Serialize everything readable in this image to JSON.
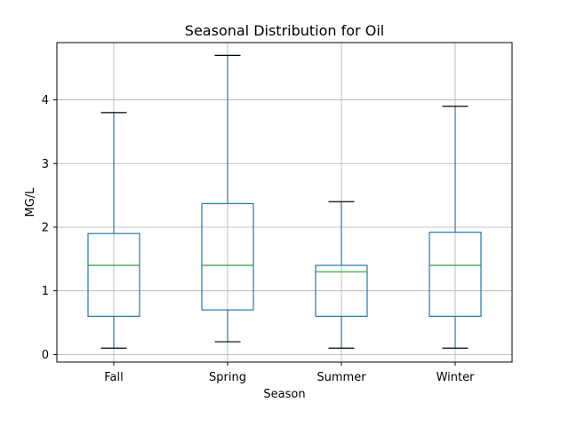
{
  "chart_data": {
    "type": "boxplot",
    "title": "Seasonal Distribution for Oil",
    "xlabel": "Season",
    "ylabel": "MG/L",
    "categories": [
      "Fall",
      "Spring",
      "Summer",
      "Winter"
    ],
    "ylim": [
      -0.12,
      4.9
    ],
    "yticks": [
      0,
      1,
      2,
      3,
      4
    ],
    "grid": true,
    "boxes": [
      {
        "category": "Fall",
        "whisker_low": 0.1,
        "q1": 0.6,
        "median": 1.4,
        "q3": 1.9,
        "whisker_high": 3.8
      },
      {
        "category": "Spring",
        "whisker_low": 0.2,
        "q1": 0.7,
        "median": 1.4,
        "q3": 2.37,
        "whisker_high": 4.7
      },
      {
        "category": "Summer",
        "whisker_low": 0.1,
        "q1": 0.6,
        "median": 1.3,
        "q3": 1.4,
        "whisker_high": 2.4
      },
      {
        "category": "Winter",
        "whisker_low": 0.1,
        "q1": 0.6,
        "median": 1.4,
        "q3": 1.92,
        "whisker_high": 3.9
      }
    ],
    "colors": {
      "box": "#1f77b4",
      "median": "#2ca02c",
      "caps": "#000000",
      "grid": "#b0b0b0"
    }
  }
}
